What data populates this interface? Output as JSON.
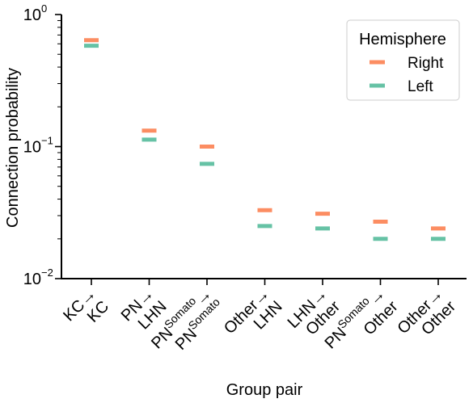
{
  "chart_data": {
    "type": "scatter",
    "xlabel": "Group pair",
    "ylabel": "Connection probability",
    "yscale": "log",
    "ylim": [
      0.01,
      1
    ],
    "y_ticks": [
      {
        "value": 1,
        "label": "10",
        "exp": "0"
      },
      {
        "value": 0.1,
        "label": "10",
        "exp": "−1"
      },
      {
        "value": 0.01,
        "label": "10",
        "exp": "−2"
      }
    ],
    "categories": [
      {
        "line1": "KC→",
        "line2": "KC"
      },
      {
        "line1": "PN→",
        "line2": "LHN"
      },
      {
        "line1": "PN",
        "line1_sup": "Somato",
        "line1_suffix": "→",
        "line2": "PN",
        "line2_sup": "Somato"
      },
      {
        "line1": "Other→",
        "line2": "LHN"
      },
      {
        "line1": "LHN→",
        "line2": "Other"
      },
      {
        "line1": "PN",
        "line1_sup": "Somato",
        "line1_suffix": "→",
        "line2": "Other"
      },
      {
        "line1": "Other→",
        "line2": "Other"
      }
    ],
    "series": [
      {
        "name": "Right",
        "color": "#fc8d62",
        "values": [
          0.64,
          0.132,
          0.1,
          0.033,
          0.031,
          0.027,
          0.024
        ]
      },
      {
        "name": "Left",
        "color": "#66c2a5",
        "values": [
          0.58,
          0.113,
          0.074,
          0.025,
          0.024,
          0.02,
          0.02
        ]
      }
    ],
    "legend": {
      "title": "Hemisphere",
      "placement": "top-right"
    }
  }
}
